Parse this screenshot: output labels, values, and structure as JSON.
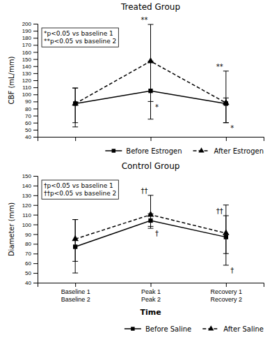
{
  "chart_data": [
    {
      "type": "line",
      "title": "Treated Group",
      "subtitle": "Control Group",
      "ylabel": "CBF (mL/mm)",
      "categories": [
        "Baseline 1\nBaseline 2",
        "Peak 1\nPeak 2",
        "Recovery 1\nRecovery 2"
      ],
      "tick_labels": "y",
      "ylim": [
        40,
        200
      ],
      "yticks": [
        40,
        50,
        60,
        70,
        80,
        90,
        100,
        110,
        120,
        130,
        140,
        150,
        160,
        170,
        180,
        190,
        200
      ],
      "grid": false,
      "legend": "lower right",
      "series": [
        {
          "name": "Before Estrogen",
          "color": "#000000",
          "marker": "square",
          "line_style": "solid",
          "values": [
            87,
            105,
            87
          ],
          "error_low": [
            33,
            15,
            27
          ],
          "error_high": [
            22,
            42,
            8
          ]
        },
        {
          "name": "After Estrogen",
          "color": "#000000",
          "marker": "triangle",
          "line_style": "dashed",
          "values": [
            87,
            147,
            88
          ],
          "error_low": [
            27,
            82,
            28
          ],
          "error_high": [
            22,
            52,
            45
          ]
        }
      ],
      "annotations": [
        {
          "text": "**",
          "series": "After Estrogen",
          "category": "Peak 1\nPeak 2",
          "position": "above"
        },
        {
          "text": "*",
          "series": "Before Estrogen",
          "category": "Peak 1\nPeak 2",
          "position": "below"
        },
        {
          "text": "**",
          "series": "After Estrogen",
          "category": "Recovery 1\nRecovery 2",
          "position": "above"
        },
        {
          "text": "*",
          "series": "Before Estrogen",
          "category": "Recovery 1\nRecovery 2",
          "position": "below"
        },
        {
          "text": "*p<0.05 vs baseline 1\n**p<0.05 vs baseline 2",
          "position": "top left"
        }
      ]
    },
    {
      "type": "line",
      "ylabel": "Diameter (mm)",
      "xlabel": "Time",
      "categories": [
        "Baseline 1\nBaseline 2",
        "Peak 1\nPeak 2",
        "Recovery 1\nRecovery 2"
      ],
      "ylim": [
        40,
        150
      ],
      "yticks": [
        40,
        50,
        60,
        70,
        80,
        90,
        100,
        110,
        120,
        130,
        140,
        150
      ],
      "grid": false,
      "legend": "lower right",
      "series": [
        {
          "name": "Before Saline",
          "color": "#000000",
          "marker": "square",
          "line_style": "solid",
          "values": [
            77,
            104,
            87
          ],
          "error_low": [
            27,
            8,
            17
          ],
          "error_high": [
            28,
            7,
            33
          ]
        },
        {
          "name": "After Saline",
          "color": "#000000",
          "marker": "triangle",
          "line_style": "dashed",
          "values": [
            85,
            110,
            91
          ],
          "error_low": [
            23,
            12,
            33
          ],
          "error_high": [
            20,
            20,
            18
          ]
        }
      ],
      "annotations": [
        {
          "text": "††",
          "series": "After Saline",
          "category": "Peak 1\nPeak 2",
          "position": "above"
        },
        {
          "text": "†",
          "series": "Before Saline",
          "category": "Peak 1\nPeak 2",
          "position": "below"
        },
        {
          "text": "††",
          "series": "After Saline",
          "category": "Recovery 1\nRecovery 2",
          "position": "above"
        },
        {
          "text": "†",
          "series": "After Saline",
          "category": "Recovery 1\nRecovery 2",
          "position": "below"
        },
        {
          "text": "†p<0.05 vs baseline 1\n††p<0.05 vs baseline 2",
          "position": "top left"
        }
      ]
    }
  ]
}
